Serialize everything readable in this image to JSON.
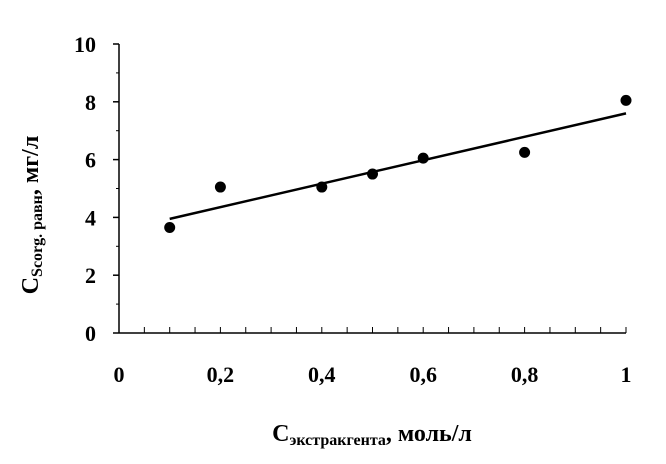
{
  "chart_data": {
    "type": "scatter",
    "x": [
      0.1,
      0.2,
      0.4,
      0.5,
      0.6,
      0.8,
      1.0
    ],
    "y": [
      3.65,
      5.05,
      5.05,
      5.5,
      6.05,
      6.25,
      8.05
    ],
    "trendline": {
      "type": "linear",
      "x": [
        0.1,
        1.0
      ],
      "y": [
        3.95,
        7.6
      ]
    },
    "xlim": [
      0,
      1
    ],
    "ylim": [
      0,
      10
    ],
    "x_ticks": [
      0,
      0.2,
      0.4,
      0.6,
      0.8,
      1
    ],
    "x_tick_labels": [
      "0",
      "0,2",
      "0,4",
      "0,6",
      "0,8",
      "1"
    ],
    "y_ticks": [
      0,
      2,
      4,
      6,
      8,
      10
    ],
    "y_tick_labels": [
      "0",
      "2",
      "4",
      "6",
      "8",
      "10"
    ],
    "xlabel": {
      "main": "C",
      "sub": "экстракгента",
      "suffix": ", моль/л"
    },
    "ylabel": {
      "main": "C",
      "sub": "Scorg. равн",
      "suffix": ", мг/л"
    },
    "grid": false,
    "marker_color": "#000000",
    "line_color": "#000000"
  }
}
